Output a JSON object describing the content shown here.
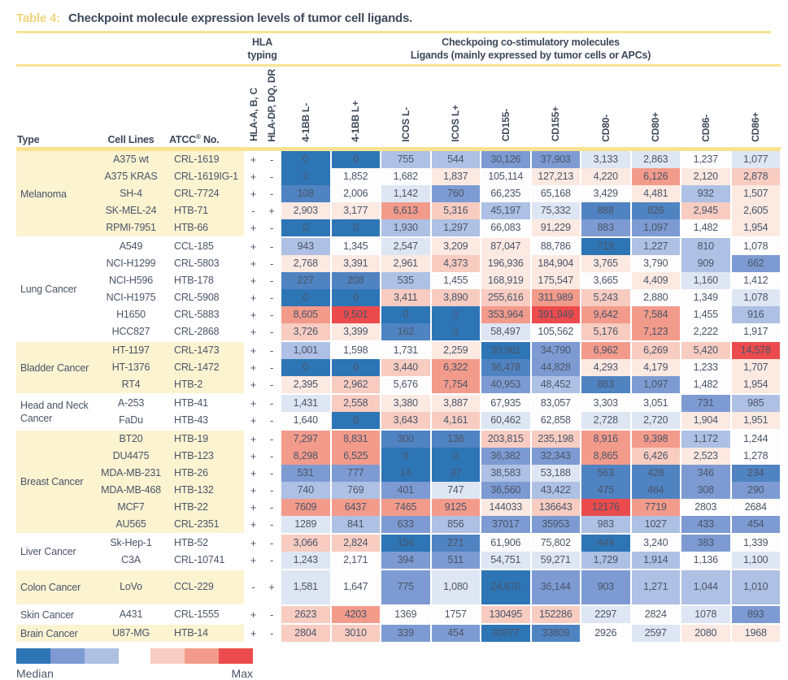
{
  "title": {
    "tag": "Table 4:",
    "text": "Checkpoint molecule expression levels of tumor cell ligands."
  },
  "header": {
    "hla_group_line1": "HLA",
    "hla_group_line2": "typing",
    "costim_line1": "Checkpoing co-stimulatory molecules",
    "costim_line2": "Ligands (mainly expressed by tumor cells or APCs)",
    "type_col": "Type",
    "cell_lines_col": "Cell Lines",
    "atcc_pre": "ATCC",
    "atcc_sup": "®",
    "atcc_post": " No.",
    "hla_cols": [
      "HLA-A, B, C",
      "HLA-DP, DQ, DR"
    ],
    "marker_cols": [
      "4-1BB L-",
      "4-1BB L+",
      "ICOS L-",
      "ICOS L+",
      "CD155-",
      "CD155+",
      "CD80-",
      "CD80+",
      "CD86-",
      "CD86+"
    ]
  },
  "palette": {
    "b4": "#2E75B6",
    "b3": "#5083C1",
    "b2": "#7D9BD2",
    "b1": "#AEC0E4",
    "b0": "#DEE6F4",
    "w": "#FDFDFD",
    "r0": "#FBE9E2",
    "r1": "#F8CCC1",
    "r2": "#F39B8B",
    "r3": "#EB4B4C"
  },
  "groups": [
    {
      "type": "Melanoma",
      "shaded": true,
      "rows": [
        {
          "cell_line": "A375 wt",
          "atcc": "CRL-1619",
          "hla_abc": "+",
          "hla_dp": "-",
          "values": [
            "0",
            "0",
            "755",
            "544",
            "30,126",
            "37,903",
            "3,133",
            "2,863",
            "1,237",
            "1,077"
          ],
          "colors": [
            "b4",
            "b4",
            "b1",
            "b1",
            "b2",
            "b2",
            "b0",
            "b0",
            "w",
            "b0"
          ]
        },
        {
          "cell_line": "A375 KRAS",
          "atcc": "CRL-1619IG-1",
          "hla_abc": "+",
          "hla_dp": "-",
          "values": [
            "0",
            "1,852",
            "1,682",
            "1,837",
            "105,114",
            "127,213",
            "4,220",
            "6,126",
            "2,120",
            "2,878"
          ],
          "colors": [
            "b4",
            "w",
            "w",
            "r0",
            "w",
            "r0",
            "r0",
            "r2",
            "r0",
            "r1"
          ]
        },
        {
          "cell_line": "SH-4",
          "atcc": "CRL-7724",
          "hla_abc": "+",
          "hla_dp": "-",
          "values": [
            "108",
            "2,006",
            "1,142",
            "760",
            "66,235",
            "65,168",
            "3,429",
            "4,481",
            "932",
            "1,507"
          ],
          "colors": [
            "b3",
            "w",
            "b0",
            "b2",
            "w",
            "w",
            "w",
            "r0",
            "b1",
            "r0"
          ]
        },
        {
          "cell_line": "SK-MEL-24",
          "atcc": "HTB-71",
          "hla_abc": "-",
          "hla_dp": "+",
          "values": [
            "2,903",
            "3,177",
            "6,613",
            "5,316",
            "45,197",
            "75,332",
            "888",
            "826",
            "2,945",
            "2,605"
          ],
          "colors": [
            "r0",
            "r0",
            "r2",
            "r1",
            "b1",
            "b0",
            "b3",
            "b3",
            "r1",
            "r0"
          ]
        },
        {
          "cell_line": "RPMI-7951",
          "atcc": "HTB-66",
          "hla_abc": "+",
          "hla_dp": "-",
          "values": [
            "0",
            "0",
            "1,930",
            "1,297",
            "66,083",
            "91,229",
            "883",
            "1,097",
            "1,482",
            "1,954"
          ],
          "colors": [
            "b4",
            "b4",
            "b1",
            "b1",
            "w",
            "r0",
            "b2",
            "b2",
            "w",
            "r0"
          ]
        }
      ]
    },
    {
      "type": "Lung Cancer",
      "shaded": false,
      "rows": [
        {
          "cell_line": "A549",
          "atcc": "CCL-185",
          "hla_abc": "+",
          "hla_dp": "-",
          "values": [
            "943",
            "1,345",
            "2,547",
            "3,209",
            "87,047",
            "88,786",
            "719",
            "1,227",
            "810",
            "1,078"
          ],
          "colors": [
            "b1",
            "w",
            "b0",
            "r0",
            "r0",
            "w",
            "b4",
            "b1",
            "b1",
            "w"
          ]
        },
        {
          "cell_line": "NCI-H1299",
          "atcc": "CRL-5803",
          "hla_abc": "+",
          "hla_dp": "-",
          "values": [
            "2,768",
            "3,391",
            "2,961",
            "4,373",
            "196,936",
            "184,904",
            "3,765",
            "3,790",
            "909",
            "662"
          ],
          "colors": [
            "r0",
            "r0",
            "r0",
            "r1",
            "r0",
            "r0",
            "r0",
            "w",
            "b1",
            "b2"
          ]
        },
        {
          "cell_line": "NCI-H596",
          "atcc": "HTB-178",
          "hla_abc": "+",
          "hla_dp": "-",
          "values": [
            "227",
            "208",
            "535",
            "1,455",
            "168,919",
            "175,547",
            "3,665",
            "4,409",
            "1,160",
            "1,412"
          ],
          "colors": [
            "b3",
            "b3",
            "b1",
            "w",
            "r0",
            "r0",
            "w",
            "r0",
            "b0",
            "w"
          ]
        },
        {
          "cell_line": "NCI-H1975",
          "atcc": "CRL-5908",
          "hla_abc": "+",
          "hla_dp": "-",
          "values": [
            "0",
            "0",
            "3,411",
            "3,890",
            "255,616",
            "311,989",
            "5,243",
            "2,880",
            "1,349",
            "1,078"
          ],
          "colors": [
            "b4",
            "b4",
            "r1",
            "r1",
            "r1",
            "r2",
            "r1",
            "w",
            "w",
            "b0"
          ]
        },
        {
          "cell_line": "H1650",
          "atcc": "CRL-5883",
          "hla_abc": "+",
          "hla_dp": "-",
          "values": [
            "8,605",
            "9,501",
            "0",
            "0",
            "353,964",
            "391,949",
            "9,642",
            "7,584",
            "1,455",
            "916"
          ],
          "colors": [
            "r2",
            "r3",
            "b4",
            "b4",
            "r2",
            "r3",
            "r2",
            "r2",
            "w",
            "b1"
          ]
        },
        {
          "cell_line": "HCC827",
          "atcc": "CRL-2868",
          "hla_abc": "+",
          "hla_dp": "-",
          "values": [
            "3,726",
            "3,399",
            "162",
            "0",
            "58,497",
            "105,562",
            "5,176",
            "7,123",
            "2,222",
            "1,917"
          ],
          "colors": [
            "r1",
            "r0",
            "b3",
            "b4",
            "b0",
            "w",
            "r1",
            "r2",
            "w",
            "w"
          ]
        }
      ]
    },
    {
      "type": "Bladder Cancer",
      "shaded": true,
      "rows": [
        {
          "cell_line": "HT-1197",
          "atcc": "CRL-1473",
          "hla_abc": "+",
          "hla_dp": "-",
          "values": [
            "1,001",
            "1,598",
            "1,731",
            "2,259",
            "30,961",
            "34,790",
            "6,962",
            "6,269",
            "5,420",
            "14,578"
          ],
          "colors": [
            "b1",
            "w",
            "w",
            "r0",
            "b4",
            "b2",
            "r2",
            "r1",
            "r1",
            "r3"
          ]
        },
        {
          "cell_line": "HT-1376",
          "atcc": "CRL-1472",
          "hla_abc": "+",
          "hla_dp": "-",
          "values": [
            "0",
            "0",
            "3,440",
            "6,322",
            "36,478",
            "44,828",
            "4,293",
            "4,179",
            "1,233",
            "1,707"
          ],
          "colors": [
            "b4",
            "b4",
            "r1",
            "r2",
            "b3",
            "b2",
            "r0",
            "r0",
            "w",
            "r0"
          ]
        },
        {
          "cell_line": "RT4",
          "atcc": "HTB-2",
          "hla_abc": "+",
          "hla_dp": "-",
          "values": [
            "2,395",
            "2,962",
            "5,676",
            "7,754",
            "40,953",
            "48,452",
            "883",
            "1,097",
            "1,482",
            "1,954"
          ],
          "colors": [
            "r0",
            "r1",
            "w",
            "r2",
            "b2",
            "b1",
            "b3",
            "b2",
            "w",
            "r0"
          ]
        }
      ]
    },
    {
      "type": "Head and Neck Cancer",
      "shaded": false,
      "rows": [
        {
          "cell_line": "A-253",
          "atcc": "HTB-41",
          "hla_abc": "+",
          "hla_dp": "-",
          "values": [
            "1,431",
            "2,558",
            "3,380",
            "3,887",
            "67,935",
            "83,057",
            "3,303",
            "3,051",
            "731",
            "985"
          ],
          "colors": [
            "b0",
            "r1",
            "r0",
            "r0",
            "w",
            "w",
            "w",
            "w",
            "b2",
            "b1"
          ]
        },
        {
          "cell_line": "FaDu",
          "atcc": "HTB-43",
          "hla_abc": "+",
          "hla_dp": "-",
          "values": [
            "1,640",
            "0",
            "3,643",
            "4,161",
            "60,462",
            "62,858",
            "2,728",
            "2,720",
            "1,904",
            "1,951"
          ],
          "colors": [
            "w",
            "b4",
            "r1",
            "r1",
            "b0",
            "w",
            "b0",
            "b0",
            "r0",
            "r0"
          ]
        }
      ]
    },
    {
      "type": "Breast Cancer",
      "shaded": true,
      "rows": [
        {
          "cell_line": "BT20",
          "atcc": "HTB-19",
          "hla_abc": "+",
          "hla_dp": "-",
          "values": [
            "7,297",
            "8,831",
            "300",
            "136",
            "203,815",
            "235,198",
            "8,916",
            "9,398",
            "1,172",
            "1,244"
          ],
          "colors": [
            "r2",
            "r2",
            "b3",
            "b3",
            "r1",
            "r1",
            "r2",
            "r2",
            "b1",
            "w"
          ]
        },
        {
          "cell_line": "DU4475",
          "atcc": "HTB-123",
          "hla_abc": "+",
          "hla_dp": "-",
          "values": [
            "8,298",
            "6,525",
            "0",
            "0",
            "36,382",
            "32,343",
            "8,865",
            "6,426",
            "2,523",
            "1,278"
          ],
          "colors": [
            "r2",
            "r2",
            "b4",
            "b4",
            "b2",
            "b2",
            "r2",
            "r1",
            "r0",
            "w"
          ]
        },
        {
          "cell_line": "MDA-MB-231",
          "atcc": "HTB-26",
          "hla_abc": "+",
          "hla_dp": "-",
          "values": [
            "531",
            "777",
            "14",
            "37",
            "38,583",
            "53,188",
            "563",
            "428",
            "346",
            "234"
          ],
          "colors": [
            "b2",
            "b2",
            "b4",
            "b4",
            "b1",
            "b0",
            "b3",
            "b3",
            "b2",
            "b3"
          ]
        },
        {
          "cell_line": "MDA-MB-468",
          "atcc": "HTB-132",
          "hla_abc": "+",
          "hla_dp": "-",
          "values": [
            "740",
            "769",
            "401",
            "747",
            "36,560",
            "43,422",
            "475",
            "464",
            "308",
            "290"
          ],
          "colors": [
            "b1",
            "b1",
            "b2",
            "b0",
            "b2",
            "b1",
            "b3",
            "b3",
            "b2",
            "b2"
          ]
        },
        {
          "cell_line": "MCF7",
          "atcc": "HTB-22",
          "hla_abc": "+",
          "hla_dp": "-",
          "values": [
            "7609",
            "6437",
            "7465",
            "9125",
            "144033",
            "136643",
            "12176",
            "7719",
            "2803",
            "2684"
          ],
          "colors": [
            "r2",
            "r2",
            "r2",
            "r2",
            "r0",
            "r1",
            "r3",
            "r2",
            "w",
            "w"
          ]
        },
        {
          "cell_line": "AU565",
          "atcc": "CRL-2351",
          "hla_abc": "+",
          "hla_dp": "-",
          "values": [
            "1289",
            "841",
            "633",
            "856",
            "37017",
            "35953",
            "983",
            "1027",
            "433",
            "454"
          ],
          "colors": [
            "b0",
            "b1",
            "b2",
            "b1",
            "b2",
            "b2",
            "b1",
            "b1",
            "b2",
            "b2"
          ]
        }
      ]
    },
    {
      "type": "Liver Cancer",
      "shaded": false,
      "rows": [
        {
          "cell_line": "Sk-Hep-1",
          "atcc": "HTB-52",
          "hla_abc": "+",
          "hla_dp": "-",
          "values": [
            "3,066",
            "2,824",
            "156",
            "271",
            "61,906",
            "75,802",
            "449",
            "3,240",
            "383",
            "1,339"
          ],
          "colors": [
            "r1",
            "r1",
            "b4",
            "b3",
            "w",
            "w",
            "b4",
            "w",
            "b2",
            "w"
          ]
        },
        {
          "cell_line": "C3A",
          "atcc": "CRL-10741",
          "hla_abc": "+",
          "hla_dp": "-",
          "values": [
            "1,243",
            "2,171",
            "394",
            "511",
            "54,751",
            "59,271",
            "1,729",
            "1,914",
            "1,136",
            "1,100"
          ],
          "colors": [
            "b0",
            "w",
            "b2",
            "b2",
            "b0",
            "b0",
            "b1",
            "b1",
            "w",
            "b0"
          ]
        }
      ]
    },
    {
      "type": "Colon Cancer",
      "shaded": true,
      "tall": true,
      "rows": [
        {
          "cell_line": "LoVo",
          "atcc": "CCL-229",
          "hla_abc": "-",
          "hla_dp": "+",
          "values": [
            "1,581",
            "1,647",
            "775",
            "1,080",
            "24,870",
            "36,144",
            "903",
            "1,271",
            "1,044",
            "1,010"
          ],
          "colors": [
            "b0",
            "w",
            "b2",
            "b0",
            "b4",
            "b2",
            "b2",
            "b1",
            "b1",
            "b1"
          ]
        }
      ]
    },
    {
      "type": "Skin Cancer",
      "shaded": false,
      "rows": [
        {
          "cell_line": "A431",
          "atcc": "CRL-1555",
          "hla_abc": "+",
          "hla_dp": "-",
          "values": [
            "2623",
            "4203",
            "1369",
            "1757",
            "130495",
            "152286",
            "2297",
            "2824",
            "1078",
            "893"
          ],
          "colors": [
            "r1",
            "r2",
            "w",
            "w",
            "r1",
            "r1",
            "b0",
            "w",
            "b0",
            "b2"
          ]
        }
      ]
    },
    {
      "type": "Brain Cancer",
      "shaded": true,
      "rows": [
        {
          "cell_line": "U87-MG",
          "atcc": "HTB-14",
          "hla_abc": "+",
          "hla_dp": "-",
          "values": [
            "2804",
            "3010",
            "339",
            "454",
            "30877",
            "33809",
            "2926",
            "2597",
            "2080",
            "1968"
          ],
          "colors": [
            "r1",
            "r1",
            "b2",
            "b2",
            "b4",
            "b3",
            "w",
            "b0",
            "r0",
            "r0"
          ]
        }
      ]
    }
  ],
  "legend": {
    "median_label": "Median",
    "max_label": "Max",
    "blue_colors": [
      "#2E75B6",
      "#7D9BD2",
      "#AEC0E4"
    ],
    "red_colors": [
      "#F8CCC1",
      "#F39B8B",
      "#EB4B4C"
    ]
  }
}
